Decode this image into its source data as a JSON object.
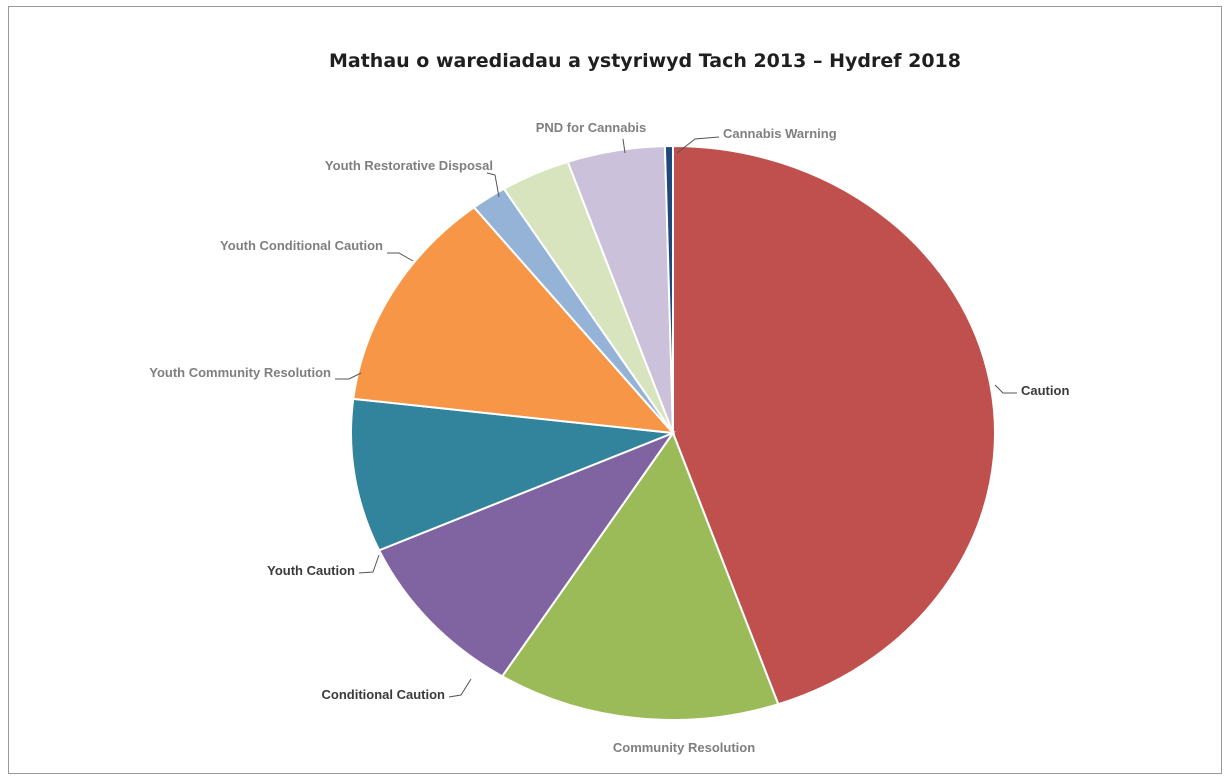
{
  "chart_data": {
    "type": "pie",
    "title": "Mathau o warediadau a ystyriwyd Tach 2013 – Hydref 2018",
    "slices": [
      {
        "label": "Caution",
        "value": 44.7,
        "color": "#c0504d",
        "label_color": "#3a3a3a"
      },
      {
        "label": "Community Resolution",
        "value": 14.2,
        "color": "#9bbb59",
        "label_color": "#7f7f7f"
      },
      {
        "label": "Conditional Caution",
        "value": 9.4,
        "color": "#8064a2",
        "label_color": "#3a3a3a"
      },
      {
        "label": "Youth Caution",
        "value": 8.6,
        "color": "#31849b",
        "label_color": "#3a3a3a"
      },
      {
        "label": "Youth Community Resolution",
        "value": 12.5,
        "color": "#f79646",
        "label_color": "#7f7f7f"
      },
      {
        "label": "Youth Conditional Caution",
        "value": 1.8,
        "color": "#95b3d7",
        "label_color": "#7f7f7f"
      },
      {
        "label": "Youth Restorative Disposal",
        "value": 3.5,
        "color": "#d7e4bd",
        "label_color": "#7f7f7f"
      },
      {
        "label": "PND for Cannabis",
        "value": 4.9,
        "color": "#ccc1da",
        "label_color": "#7f7f7f"
      },
      {
        "label": "Cannabis Warning",
        "value": 0.4,
        "color": "#1f497d",
        "label_color": "#7f7f7f"
      }
    ],
    "legend": "none",
    "start_angle_degrees": 0,
    "direction": "clockwise"
  }
}
